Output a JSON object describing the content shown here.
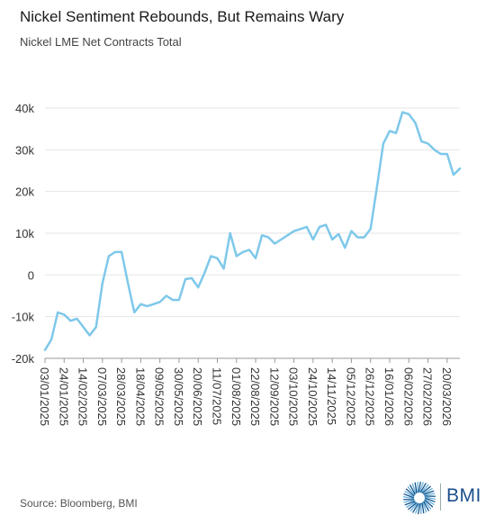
{
  "title": "Nickel Sentiment Rebounds, But Remains Wary",
  "subtitle": "Nickel LME Net Contracts Total",
  "source": "Source: Bloomberg, BMI",
  "logo_text": "BMI",
  "colors": {
    "line": "#7ec8ea",
    "grid": "#e6e6e6",
    "axis": "#999999",
    "logo": "#1c4f8c"
  },
  "chart_data": {
    "type": "line",
    "title": "Nickel Sentiment Rebounds, But Remains Wary",
    "subtitle": "Nickel LME Net Contracts Total",
    "xlabel": "",
    "ylabel": "",
    "ylim": [
      -20000,
      40000
    ],
    "grid": true,
    "legend": "none",
    "yticks": [
      40000,
      30000,
      20000,
      10000,
      0,
      -10000,
      -20000
    ],
    "ytick_labels": [
      "40k",
      "30k",
      "20k",
      "10k",
      "0",
      "-10k",
      "-20k"
    ],
    "xtick_labels": [
      "03/01/2025",
      "24/01/2025",
      "14/02/2025",
      "07/03/2025",
      "28/03/2025",
      "18/04/2025",
      "09/05/2025",
      "30/05/2025",
      "20/06/2025",
      "11/07/2025",
      "01/08/2025",
      "22/08/2025",
      "12/09/2025",
      "03/10/2025",
      "24/10/2025",
      "14/11/2025",
      "05/12/2025",
      "26/12/2025",
      "16/01/2026",
      "06/02/2026",
      "27/02/2026",
      "20/03/2026"
    ],
    "x": [
      "03/01/2025",
      "10/01/2025",
      "17/01/2025",
      "24/01/2025",
      "31/01/2025",
      "07/02/2025",
      "14/02/2025",
      "21/02/2025",
      "28/02/2025",
      "07/03/2025",
      "14/03/2025",
      "21/03/2025",
      "28/03/2025",
      "04/04/2025",
      "11/04/2025",
      "18/04/2025",
      "25/04/2025",
      "02/05/2025",
      "09/05/2025",
      "16/05/2025",
      "23/05/2025",
      "30/05/2025",
      "06/06/2025",
      "13/06/2025",
      "20/06/2025",
      "27/06/2025",
      "04/07/2025",
      "11/07/2025",
      "18/07/2025",
      "25/07/2025",
      "01/08/2025",
      "08/08/2025",
      "15/08/2025",
      "22/08/2025",
      "29/08/2025",
      "05/09/2025",
      "12/09/2025",
      "19/09/2025",
      "26/09/2025",
      "03/10/2025",
      "10/10/2025",
      "17/10/2025",
      "24/10/2025",
      "31/10/2025",
      "07/11/2025",
      "14/11/2025",
      "21/11/2025",
      "28/11/2025",
      "05/12/2025",
      "12/12/2025",
      "19/12/2025",
      "26/12/2025",
      "02/01/2026",
      "09/01/2026",
      "16/01/2026",
      "23/01/2026",
      "30/01/2026",
      "06/02/2026",
      "13/02/2026",
      "20/02/2026",
      "27/02/2026",
      "06/03/2026",
      "13/03/2026",
      "20/03/2026",
      "27/03/2026",
      "03/04/2026"
    ],
    "series": [
      {
        "values": [
          -18000,
          -15500,
          -9000,
          -9500,
          -11000,
          -10500,
          -12500,
          -14500,
          -12500,
          -2000,
          4500,
          5500,
          5500,
          -2000,
          -9000,
          -7000,
          -7500,
          -7000,
          -6500,
          -5000,
          -6000,
          -6000,
          -1000,
          -800,
          -3000,
          500,
          4500,
          4000,
          1500,
          10000,
          4500,
          5500,
          6000,
          4000,
          9500,
          9000,
          7500,
          8500,
          9500,
          10500,
          11000,
          11500,
          8500,
          11500,
          12000,
          8500,
          9800,
          6500,
          10500,
          9000,
          9000,
          11000,
          21000,
          31500,
          34500,
          34000,
          39000,
          38500,
          36500,
          32000,
          31500,
          30000,
          29000,
          29000,
          24000,
          25500
        ]
      }
    ]
  }
}
